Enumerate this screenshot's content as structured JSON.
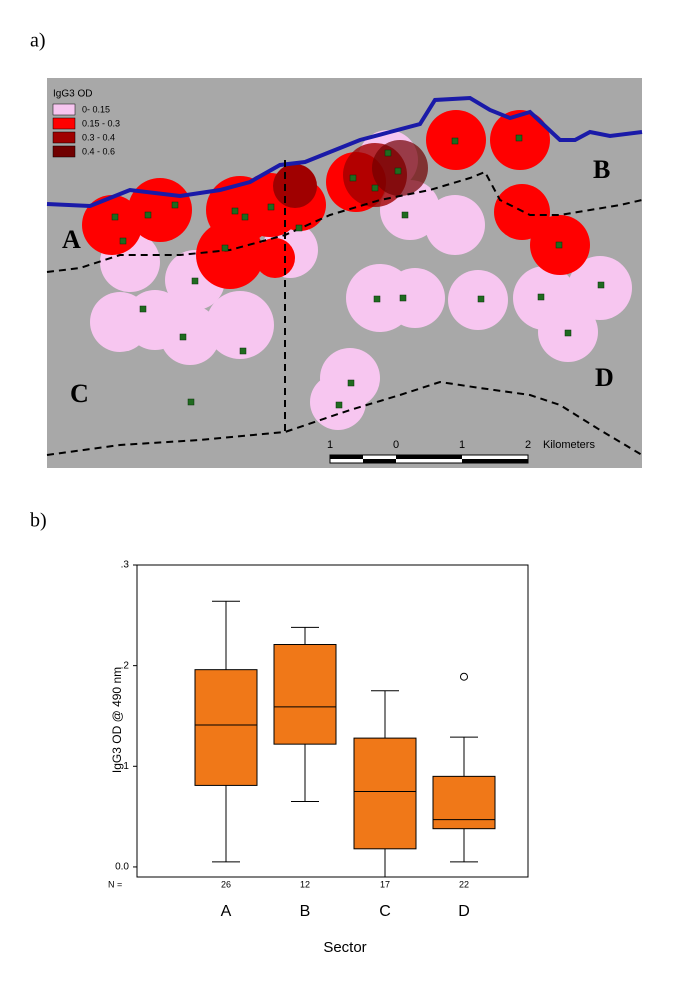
{
  "panels": {
    "a": "a)",
    "b": "b)"
  },
  "map": {
    "legend_title": "IgG3 OD",
    "legend": [
      {
        "label": "0- 0.15",
        "color": "#f7c6f0"
      },
      {
        "label": "0.15 - 0.3",
        "color": "#ff0000"
      },
      {
        "label": "0.3 - 0.4",
        "color": "#a00000"
      },
      {
        "label": "0.4 - 0.6",
        "color": "#700000"
      }
    ],
    "sectors": [
      "A",
      "B",
      "C",
      "D"
    ],
    "scale_labels": [
      "1",
      "0",
      "1",
      "2"
    ],
    "scale_unit": "Kilometers"
  },
  "chart_data": {
    "type": "box",
    "ylabel": "IgG3 OD @ 490 nm",
    "xlabel": "Sector",
    "categories": [
      "A",
      "B",
      "C",
      "D"
    ],
    "n_label": "N =",
    "n": [
      26,
      12,
      17,
      22
    ],
    "color": "#f07818",
    "boxes": [
      {
        "min": 0.005,
        "q1": 0.081,
        "median": 0.141,
        "q3": 0.196,
        "max": 0.264,
        "outliers": []
      },
      {
        "min": 0.065,
        "q1": 0.122,
        "median": 0.159,
        "q3": 0.221,
        "max": 0.238,
        "outliers": []
      },
      {
        "min": -0.01,
        "q1": 0.018,
        "median": 0.075,
        "q3": 0.128,
        "max": 0.175,
        "outliers": []
      },
      {
        "min": 0.005,
        "q1": 0.038,
        "median": 0.047,
        "q3": 0.09,
        "max": 0.129,
        "outliers": [
          0.189
        ]
      }
    ],
    "ylim": [
      -0.01,
      0.3
    ],
    "yticks": [
      {
        "value": 0,
        "label": "0.0"
      },
      {
        "value": 0.1,
        "label": ".1"
      },
      {
        "value": 0.2,
        "label": ".2"
      },
      {
        "value": 0.3,
        "label": ".3"
      }
    ]
  }
}
